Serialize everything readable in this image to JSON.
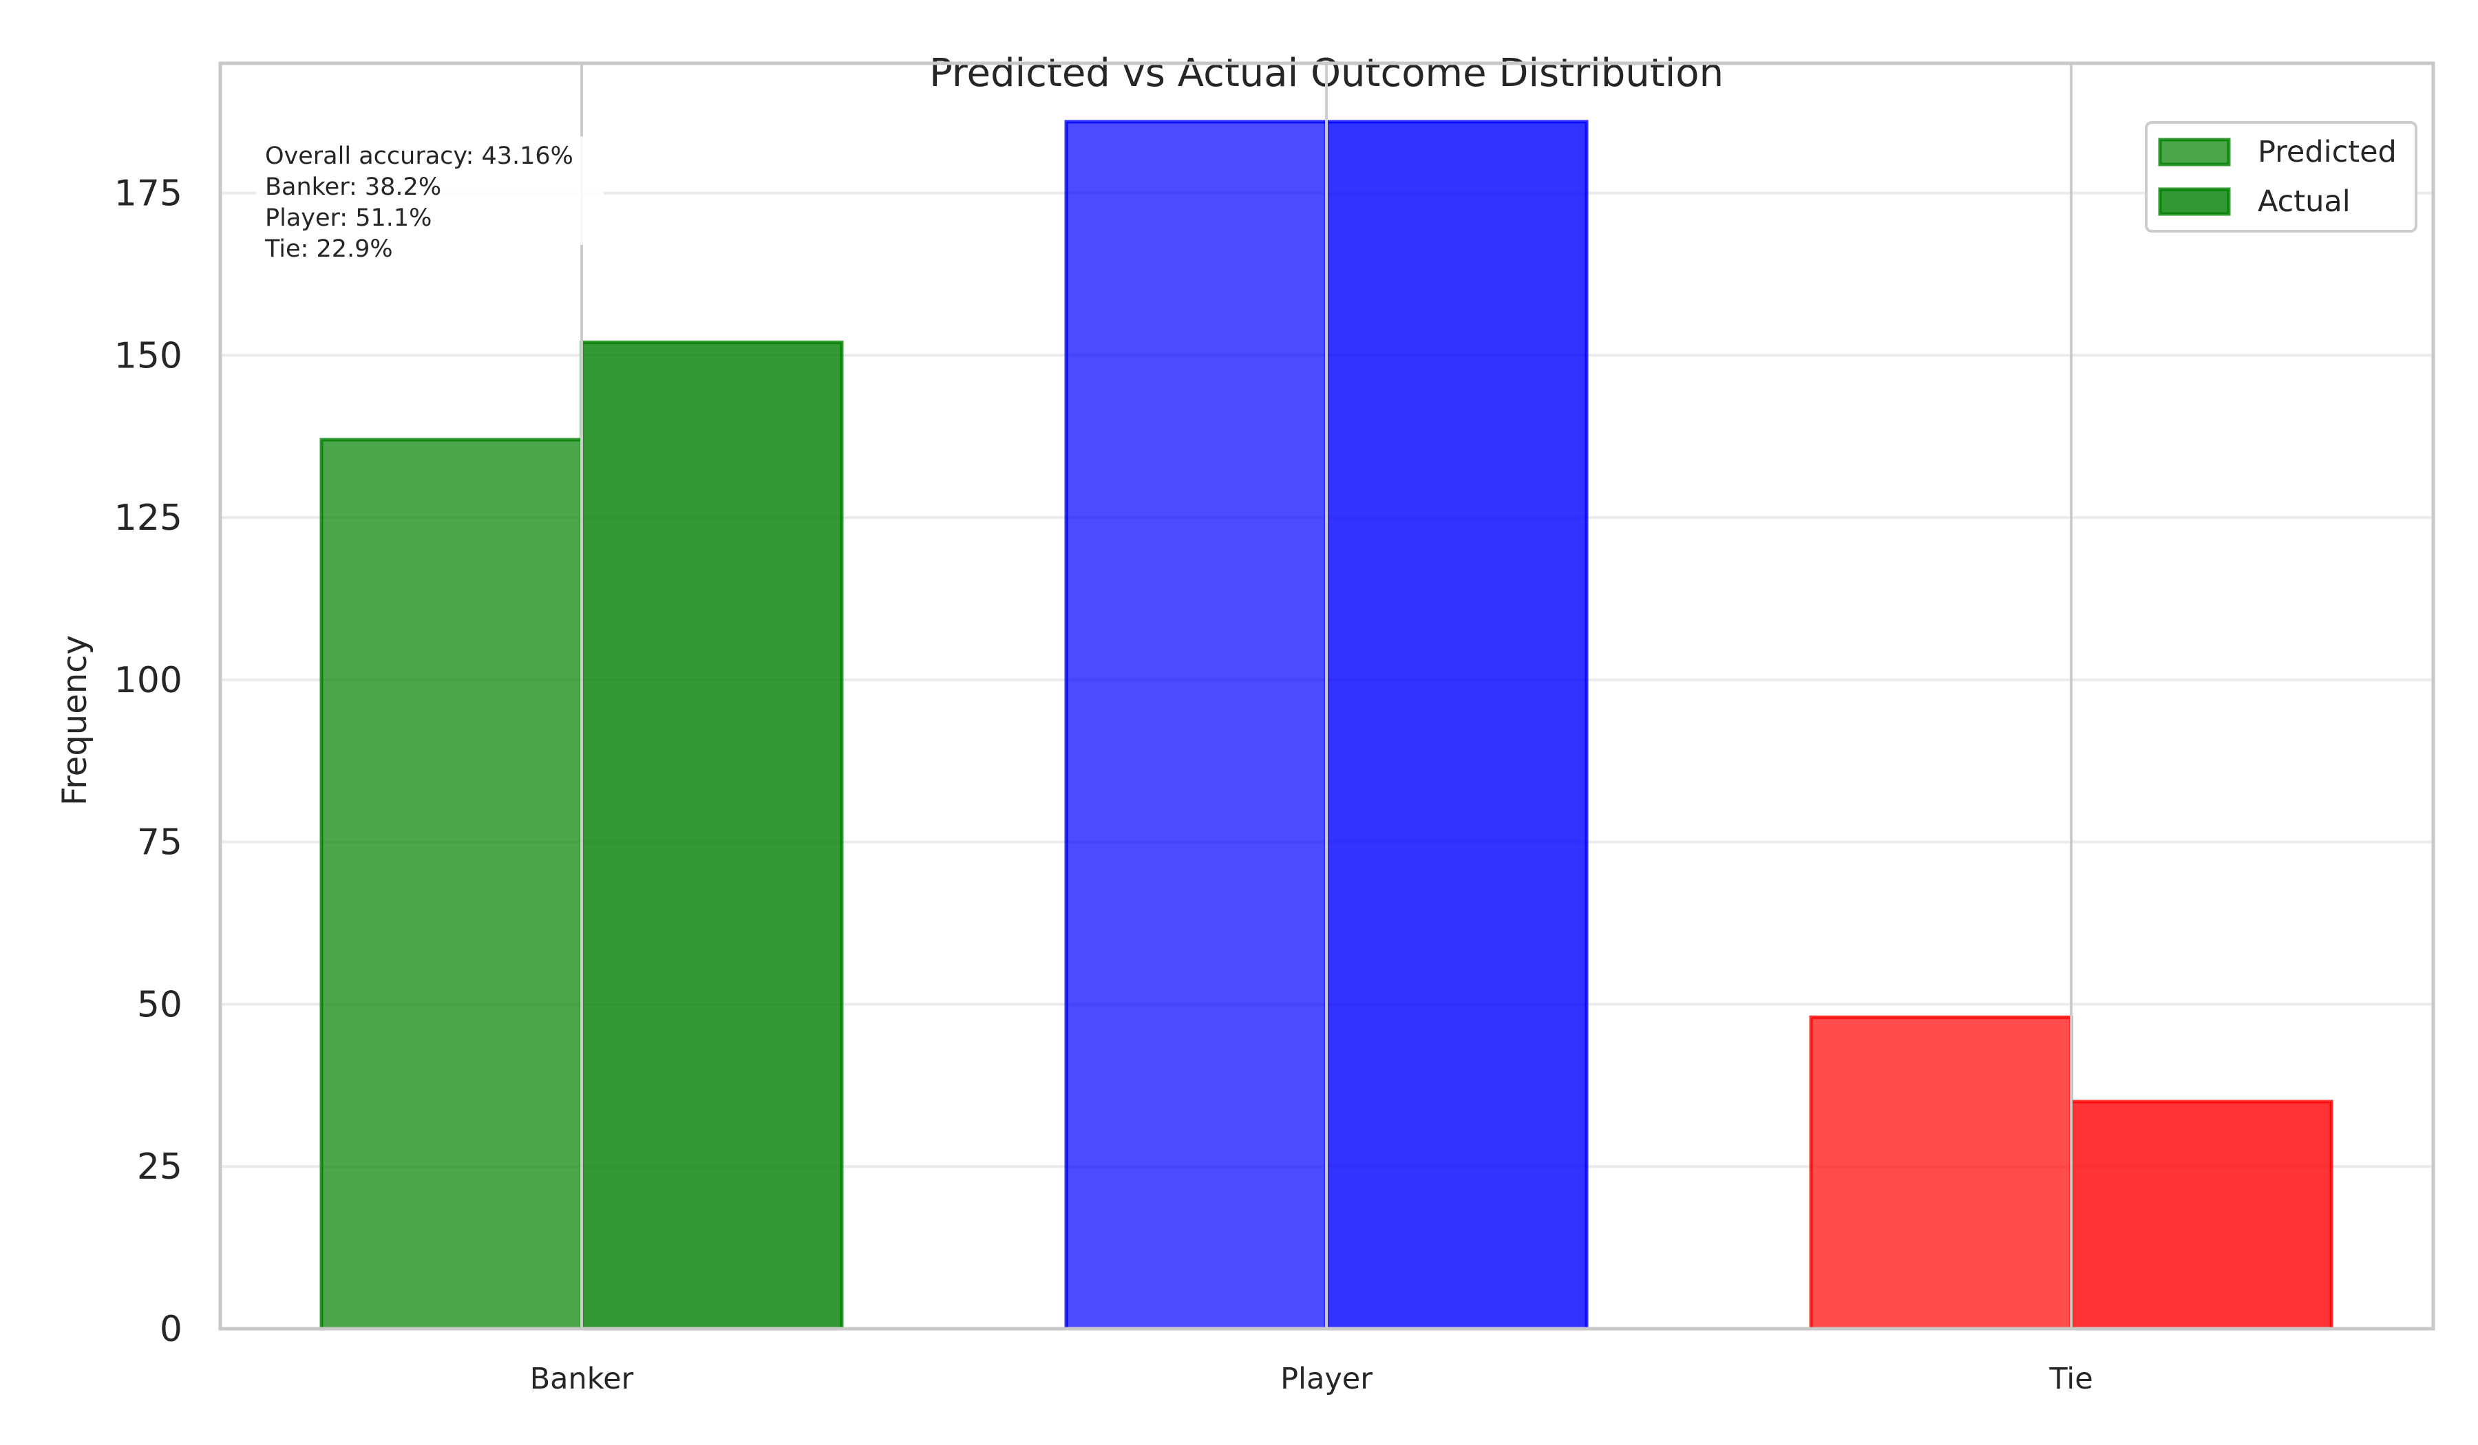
{
  "chart_data": {
    "type": "bar",
    "title": "Predicted vs Actual Outcome Distribution",
    "xlabel": "",
    "ylabel": "Frequency",
    "categories": [
      "Banker",
      "Player",
      "Tie"
    ],
    "series": [
      {
        "name": "Predicted",
        "values": [
          137,
          186,
          48
        ]
      },
      {
        "name": "Actual",
        "values": [
          152,
          186,
          35
        ]
      }
    ],
    "ylim": [
      0,
      195
    ],
    "yticks": [
      0,
      25,
      50,
      75,
      100,
      125,
      150,
      175
    ],
    "grid": true,
    "legend_position": "top-right",
    "category_colors": [
      "#008000",
      "#0000ff",
      "#ff0000"
    ],
    "series_opacity": [
      0.7,
      0.8
    ],
    "annotation_lines": [
      "Overall accuracy: 43.16%",
      "Banker: 38.2%",
      "Player: 51.1%",
      "Tie: 22.9%"
    ]
  }
}
